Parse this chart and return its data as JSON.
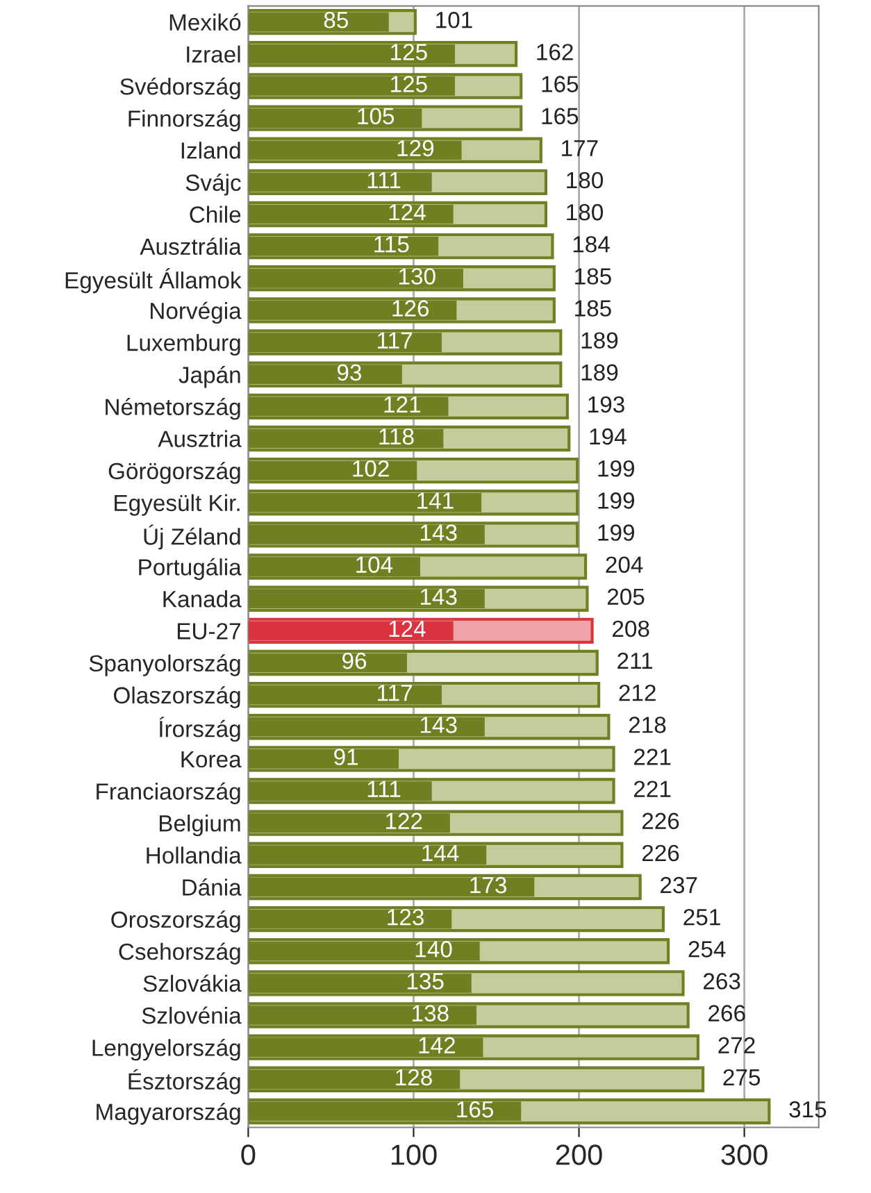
{
  "chart_data": {
    "type": "bar",
    "orientation": "horizontal",
    "categories": [
      "Mexikó",
      "Izrael",
      "Svédország",
      "Finnország",
      "Izland",
      "Svájc",
      "Chile",
      "Ausztrália",
      "Egyesült Államok",
      "Norvégia",
      "Luxemburg",
      "Japán",
      "Németország",
      "Ausztria",
      "Görögország",
      "Egyesült Kir.",
      "Új Zéland",
      "Portugália",
      "Kanada",
      "EU-27",
      "Spanyolország",
      "Olaszország",
      "Írország",
      "Korea",
      "Franciaország",
      "Belgium",
      "Hollandia",
      "Dánia",
      "Oroszország",
      "Csehország",
      "Szlovákia",
      "Szlovénia",
      "Lengyelország",
      "Észtország",
      "Magyarország"
    ],
    "series": [
      {
        "colors": [
          "#c4cc9b",
          "#c4cc9b",
          "#c4cc9b",
          "#c4cc9b",
          "#c4cc9b",
          "#c4cc9b",
          "#c4cc9b",
          "#c4cc9b",
          "#c4cc9b",
          "#c4cc9b",
          "#c4cc9b",
          "#c4cc9b",
          "#c4cc9b",
          "#c4cc9b",
          "#c4cc9b",
          "#c4cc9b",
          "#c4cc9b",
          "#c4cc9b",
          "#c4cc9b",
          "#f0a3a8",
          "#c4cc9b",
          "#c4cc9b",
          "#c4cc9b",
          "#c4cc9b",
          "#c4cc9b",
          "#c4cc9b",
          "#c4cc9b",
          "#c4cc9b",
          "#c4cc9b",
          "#c4cc9b",
          "#c4cc9b",
          "#c4cc9b",
          "#c4cc9b",
          "#c4cc9b",
          "#c4cc9b"
        ],
        "values": [
          101,
          162,
          165,
          165,
          177,
          180,
          180,
          184,
          185,
          185,
          189,
          189,
          193,
          194,
          199,
          199,
          199,
          204,
          205,
          208,
          211,
          212,
          218,
          221,
          221,
          226,
          226,
          237,
          251,
          254,
          263,
          266,
          272,
          275,
          315
        ]
      },
      {
        "colors": [
          "#6f7f22",
          "#6f7f22",
          "#6f7f22",
          "#6f7f22",
          "#6f7f22",
          "#6f7f22",
          "#6f7f22",
          "#6f7f22",
          "#6f7f22",
          "#6f7f22",
          "#6f7f22",
          "#6f7f22",
          "#6f7f22",
          "#6f7f22",
          "#6f7f22",
          "#6f7f22",
          "#6f7f22",
          "#6f7f22",
          "#6f7f22",
          "#d9343f",
          "#6f7f22",
          "#6f7f22",
          "#6f7f22",
          "#6f7f22",
          "#6f7f22",
          "#6f7f22",
          "#6f7f22",
          "#6f7f22",
          "#6f7f22",
          "#6f7f22",
          "#6f7f22",
          "#6f7f22",
          "#6f7f22",
          "#6f7f22",
          "#6f7f22"
        ],
        "values": [
          85,
          125,
          125,
          105,
          129,
          111,
          124,
          115,
          130,
          126,
          117,
          93,
          121,
          118,
          102,
          141,
          143,
          104,
          143,
          124,
          96,
          117,
          143,
          91,
          111,
          122,
          144,
          173,
          123,
          140,
          135,
          138,
          142,
          128,
          165
        ]
      }
    ],
    "xlim": [
      0,
      345
    ],
    "xticks": [
      0,
      100,
      200,
      300
    ],
    "grid": "x",
    "data_labels": true
  }
}
